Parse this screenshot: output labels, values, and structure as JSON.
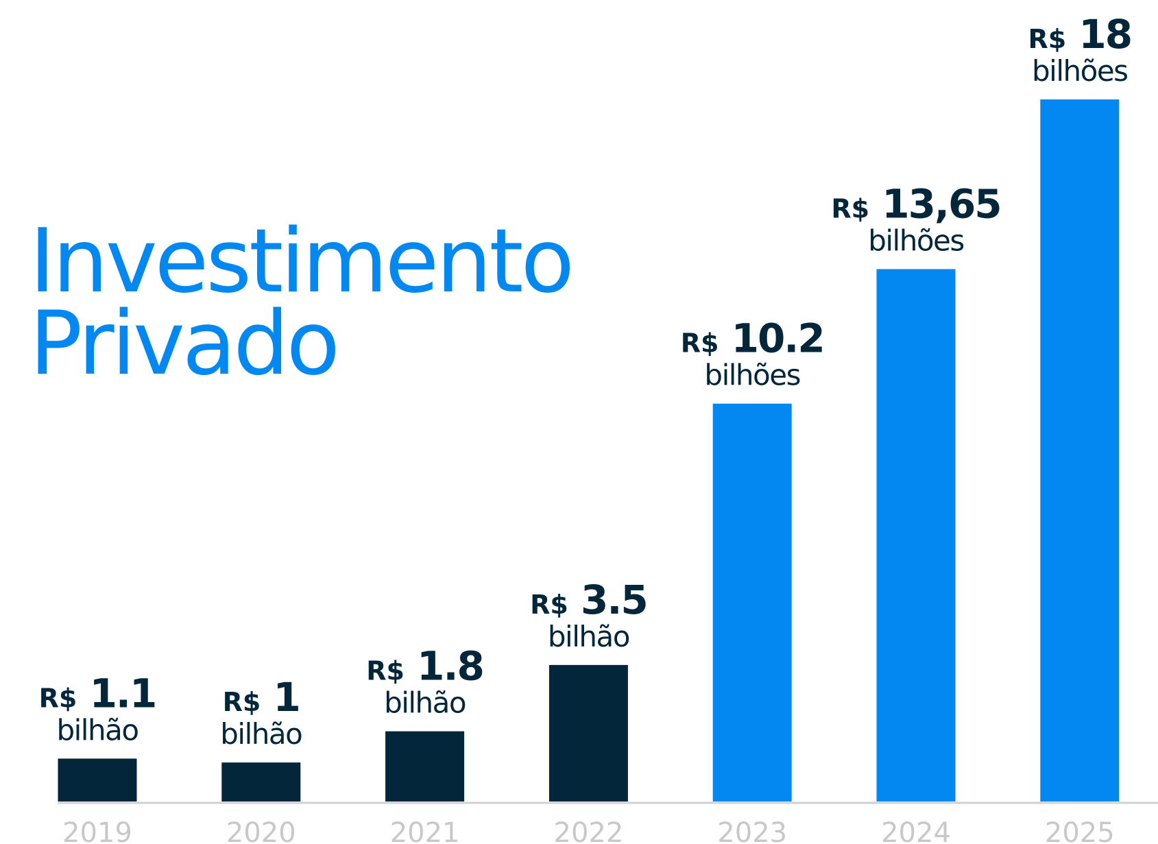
{
  "chart_data": {
    "type": "bar",
    "title": "Investimento Privado",
    "categories": [
      "2019",
      "2020",
      "2021",
      "2022",
      "2023",
      "2024",
      "2025"
    ],
    "values": [
      1.1,
      1,
      1.8,
      3.5,
      10.2,
      13.65,
      18
    ],
    "value_labels": [
      "R$ 1.1 bilhão",
      "R$ 1 bilhão",
      "R$ 1.8 bilhão",
      "R$ 3.5 bilhão",
      "R$ 10.2 bilhões",
      "R$ 13,65 bilhões",
      "R$ 18 bilhões"
    ],
    "colors": [
      "#03263b",
      "#03263b",
      "#03263b",
      "#03263b",
      "#0288f0",
      "#0288f0",
      "#0288f0"
    ],
    "title_color": "#0288f0",
    "ylim": [
      0,
      18
    ]
  }
}
